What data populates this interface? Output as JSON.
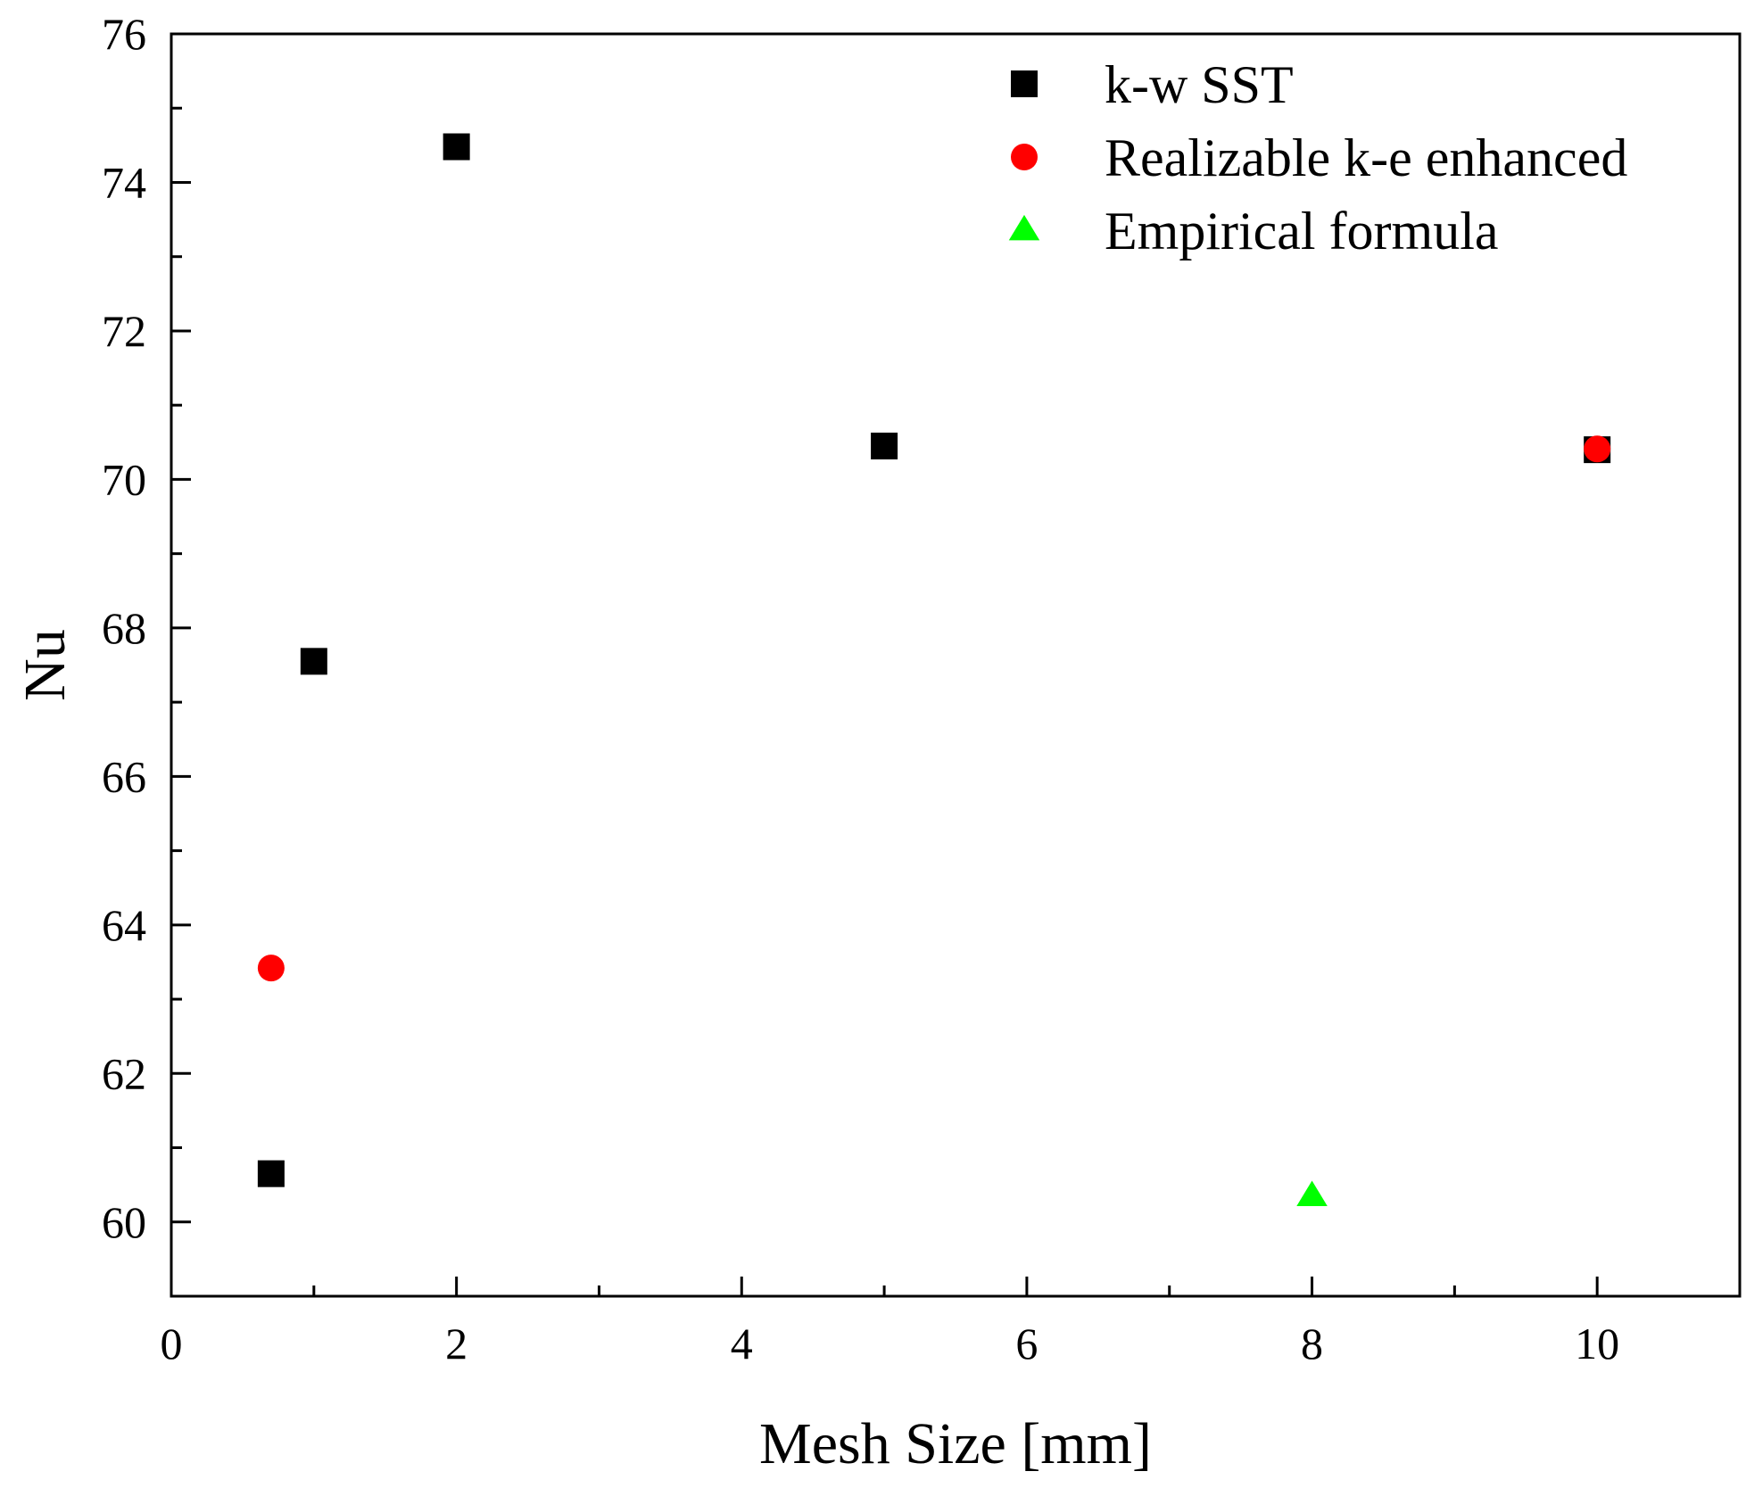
{
  "chart_data": {
    "type": "scatter",
    "title": "",
    "xlabel": "Mesh Size [mm]",
    "ylabel": "Nu",
    "xlim": [
      0,
      11
    ],
    "ylim": [
      59,
      76
    ],
    "x_ticks": [
      0,
      2,
      4,
      6,
      8,
      10
    ],
    "y_ticks": [
      60,
      62,
      64,
      66,
      68,
      70,
      72,
      74,
      76
    ],
    "grid": false,
    "legend": {
      "position": "top-right"
    },
    "series": [
      {
        "name": "k-w SST",
        "marker": "square",
        "color": "#000000",
        "points": [
          {
            "x": 0.7,
            "y": 60.65
          },
          {
            "x": 1.0,
            "y": 67.55
          },
          {
            "x": 2.0,
            "y": 74.48
          },
          {
            "x": 5.0,
            "y": 70.45
          },
          {
            "x": 10.0,
            "y": 70.4
          }
        ]
      },
      {
        "name": "Realizable k-e enhanced",
        "marker": "circle",
        "color": "#ff0000",
        "points": [
          {
            "x": 0.7,
            "y": 63.42
          },
          {
            "x": 10.0,
            "y": 70.41
          }
        ]
      },
      {
        "name": "Empirical formula",
        "marker": "triangle",
        "color": "#00ff00",
        "points": [
          {
            "x": 8.0,
            "y": 60.35
          }
        ]
      }
    ]
  }
}
